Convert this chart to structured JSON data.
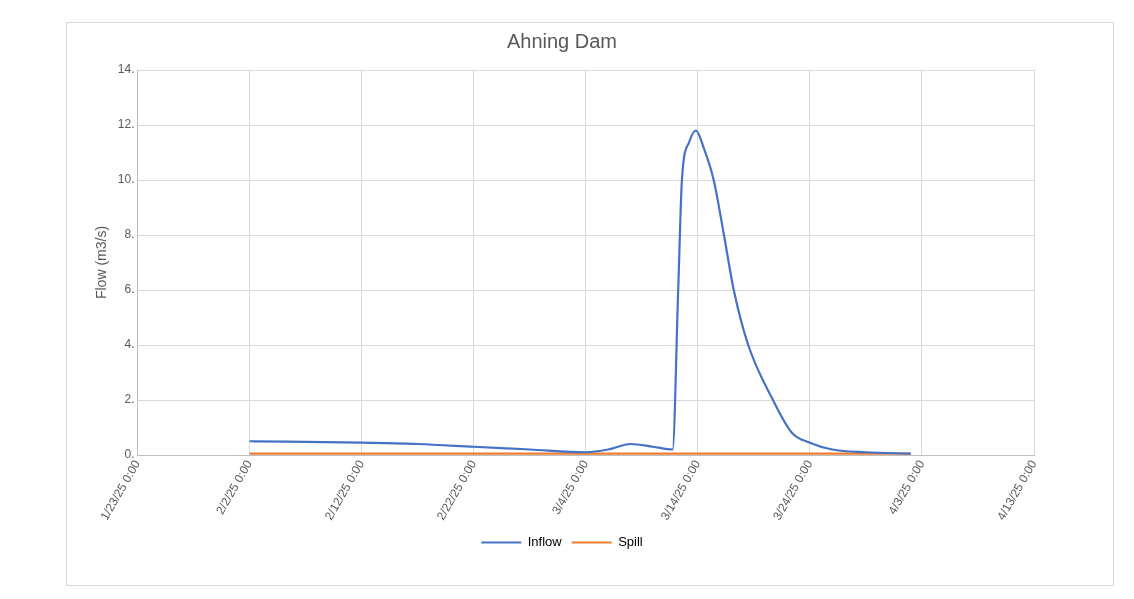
{
  "chart_data": {
    "type": "line",
    "title": "Ahning Dam",
    "ylabel": "Flow (m3/s)",
    "xlim": [
      "--01-23",
      "--04-13"
    ],
    "xticks": [
      {
        "value": "--01-23",
        "label": "1/23/25 0:00"
      },
      {
        "value": "--02-02",
        "label": "2/2/25 0:00"
      },
      {
        "value": "--02-12",
        "label": "2/12/25 0:00"
      },
      {
        "value": "--02-22",
        "label": "2/22/25 0:00"
      },
      {
        "value": "--03-04",
        "label": "3/4/25 0:00"
      },
      {
        "value": "--03-14",
        "label": "3/14/25 0:00"
      },
      {
        "value": "--03-24",
        "label": "3/24/25 0:00"
      },
      {
        "value": "--04-03",
        "label": "4/3/25 0:00"
      },
      {
        "value": "--04-13",
        "label": "4/13/25 0:00"
      }
    ],
    "ylim": [
      0,
      14
    ],
    "yticks": [
      {
        "value": 0,
        "label": "0."
      },
      {
        "value": 2,
        "label": "2."
      },
      {
        "value": 4,
        "label": "4."
      },
      {
        "value": 6,
        "label": "6."
      },
      {
        "value": 8,
        "label": "8."
      },
      {
        "value": 10,
        "label": "10."
      },
      {
        "value": 12,
        "label": "12."
      },
      {
        "value": 14,
        "label": "14."
      }
    ],
    "grid": true,
    "legend": "bottom",
    "marker": "none",
    "line_style": "solid",
    "series": [
      {
        "name": "Inflow",
        "color": "#4472c4",
        "x": [
          "--02-02",
          "--02-12",
          "--02-17",
          "--02-22",
          "--02-27",
          "--03-04",
          "--03-06",
          "--03-08",
          "--03-10",
          "--03-11T18:00",
          "--03-12T06:00",
          "--03-12T14:00",
          "--03-13T06:00",
          "--03-13T20:00",
          "--03-14T12:00",
          "--03-15T10:00",
          "--03-16T08:00",
          "--03-17T05:00",
          "--03-18T12:00",
          "--03-20T17:00",
          "--03-22T10:00",
          "--03-24",
          "--03-26",
          "--03-29",
          "--04-02"
        ],
        "values": [
          0.5,
          0.45,
          0.4,
          0.3,
          0.2,
          0.1,
          0.2,
          0.4,
          0.3,
          0.2,
          6.0,
          10.0,
          11.4,
          11.8,
          11.2,
          10.0,
          8.0,
          6.0,
          4.0,
          2.0,
          0.8,
          0.45,
          0.2,
          0.1,
          0.05
        ]
      },
      {
        "name": "Spill",
        "color": "#ed7d31",
        "x": [
          "--02-02",
          "--04-02"
        ],
        "values": [
          0.05,
          0.05
        ]
      }
    ]
  }
}
